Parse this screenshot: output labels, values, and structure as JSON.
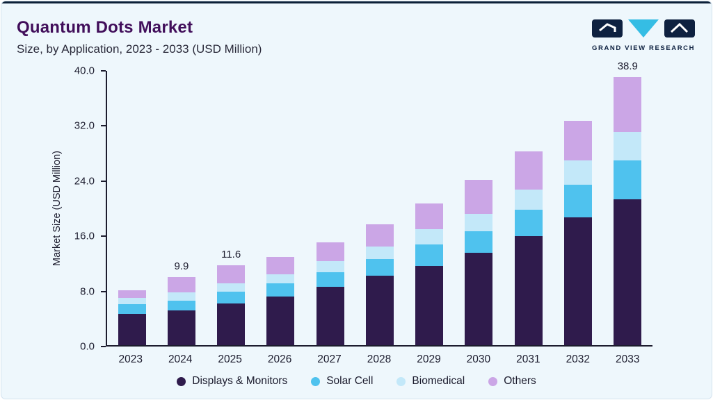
{
  "header": {
    "title": "Quantum Dots Market",
    "subtitle": "Size, by Application, 2023 - 2033 (USD Million)",
    "logo_text": "GRAND VIEW RESEARCH"
  },
  "colors": {
    "accent_top_line": "#0c2038",
    "title": "#410e5a",
    "axis": "#1c1c2e",
    "background": "#eef7fc",
    "logo_navy": "#0e2140",
    "logo_cyan": "#35bde4"
  },
  "chart_data": {
    "type": "bar",
    "stacked": true,
    "title": "Quantum Dots Market Size, by Application, 2023 - 2033 (USD Million)",
    "xlabel": "",
    "ylabel": "Market Size (USD Million)",
    "ylim": [
      0,
      40
    ],
    "yticks": [
      "0.0",
      "8.0",
      "16.0",
      "24.0",
      "32.0",
      "40.0"
    ],
    "grid": false,
    "legend_position": "bottom",
    "categories": [
      "2023",
      "2024",
      "2025",
      "2026",
      "2027",
      "2028",
      "2029",
      "2030",
      "2031",
      "2032",
      "2033"
    ],
    "series": [
      {
        "name": "Displays & Monitors",
        "color": "#2f1b4c",
        "values": [
          4.5,
          5.0,
          6.0,
          7.1,
          8.5,
          10.1,
          11.5,
          13.4,
          15.8,
          18.5,
          21.2
        ]
      },
      {
        "name": "Solar Cell",
        "color": "#4fc2ee",
        "values": [
          1.4,
          1.5,
          1.8,
          1.9,
          2.1,
          2.4,
          3.1,
          3.1,
          3.8,
          4.8,
          5.6
        ]
      },
      {
        "name": "Biomedical",
        "color": "#c3e8f9",
        "values": [
          1.0,
          1.2,
          1.2,
          1.3,
          1.6,
          1.8,
          2.2,
          2.5,
          3.0,
          3.5,
          4.1
        ]
      },
      {
        "name": "Others",
        "color": "#cba6e6",
        "values": [
          1.1,
          2.2,
          2.6,
          2.5,
          2.7,
          3.2,
          3.8,
          5.0,
          5.5,
          5.7,
          8.0
        ]
      }
    ],
    "totals": [
      8.0,
      9.9,
      11.6,
      12.8,
      14.9,
      17.5,
      20.6,
      24.0,
      28.1,
      32.5,
      38.9
    ],
    "value_labels": {
      "2024": "9.9",
      "2025": "11.6",
      "2033": "38.9"
    }
  }
}
